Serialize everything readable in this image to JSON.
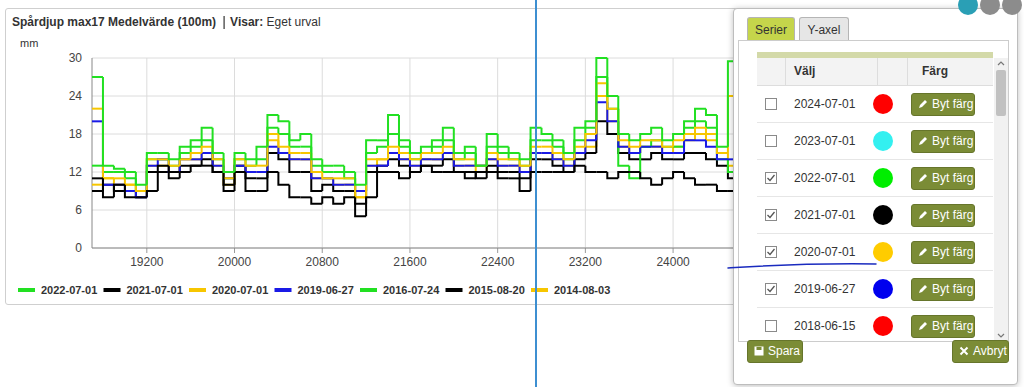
{
  "chart_data": {
    "type": "line",
    "title": "Spårdjup max17 Medelvärde (100m)",
    "subtitle": "Visar: Eget urval",
    "y_label": "mm",
    "line_style": "step",
    "x": [
      18700,
      18800,
      18900,
      19000,
      19100,
      19200,
      19300,
      19400,
      19500,
      19600,
      19700,
      19800,
      19900,
      20000,
      20100,
      20200,
      20300,
      20400,
      20500,
      20600,
      20700,
      20800,
      20900,
      21000,
      21100,
      21200,
      21300,
      21400,
      21500,
      21600,
      21700,
      21800,
      21900,
      22000,
      22100,
      22200,
      22300,
      22400,
      22500,
      22600,
      22700,
      22800,
      22900,
      23000,
      23100,
      23200,
      23300,
      23400,
      23500,
      23600,
      23700,
      23800,
      23900,
      24000,
      24100,
      24200,
      24300,
      24400,
      24500
    ],
    "xlim": [
      18700,
      27000
    ],
    "xticks": [
      19200,
      20000,
      20800,
      21600,
      22400,
      23200,
      24000
    ],
    "ylim": [
      0,
      30
    ],
    "yticks": [
      0,
      6,
      12,
      18,
      24,
      30
    ],
    "grid": true,
    "legend": "bottom",
    "series": [
      {
        "name": "2022-07-01",
        "color": "#22e022",
        "values": [
          27,
          13,
          12.5,
          12,
          10,
          15,
          15,
          14,
          16,
          17,
          19,
          15,
          12,
          15,
          14,
          16,
          21,
          20,
          17,
          18,
          14,
          13,
          13,
          12,
          10,
          17,
          17,
          21,
          17,
          15,
          16,
          17,
          19,
          15,
          16,
          13,
          18,
          16,
          15,
          14,
          19,
          18,
          17,
          15,
          19,
          20,
          30,
          24,
          18,
          17,
          18,
          19,
          17,
          18,
          20,
          22,
          21,
          16,
          29.5
        ]
      },
      {
        "name": "2021-07-01",
        "color": "#000000",
        "values": [
          11,
          8,
          10,
          8,
          8,
          9,
          13,
          12,
          12,
          13,
          13,
          12,
          10,
          12,
          9,
          9,
          12,
          10,
          8,
          8,
          7,
          8,
          7,
          8,
          5,
          8,
          12,
          12,
          11,
          12,
          13,
          12,
          12,
          12,
          11,
          12,
          12,
          11,
          11,
          9,
          12,
          12,
          12,
          12,
          13,
          12,
          12,
          11,
          12,
          12,
          11,
          10,
          11,
          12,
          11,
          10,
          10,
          9,
          9
        ]
      },
      {
        "name": "2020-07-01",
        "color": "#f7c600",
        "values": [
          22,
          11,
          11,
          10,
          9,
          14,
          14,
          13,
          14,
          15,
          16,
          14,
          11,
          14,
          13,
          13,
          18,
          16,
          15,
          15,
          12,
          11,
          11,
          11,
          8,
          14,
          14,
          16,
          15,
          14,
          15,
          15,
          16,
          14,
          14,
          13,
          15,
          14,
          14,
          13,
          16,
          16,
          15,
          14,
          16,
          18,
          26,
          22,
          17,
          16,
          17,
          17,
          16,
          17,
          18,
          19,
          18,
          15,
          24
        ]
      },
      {
        "name": "2019-06-27",
        "color": "#1a1ae6",
        "values": [
          20,
          10,
          10,
          9,
          8,
          13,
          14,
          12,
          14,
          14,
          15,
          13,
          11,
          13,
          12,
          12,
          16,
          15,
          14,
          14,
          11,
          11,
          10,
          10,
          9,
          13,
          13,
          15,
          14,
          13,
          14,
          14,
          15,
          13,
          13,
          13,
          14,
          13,
          13,
          12,
          15,
          15,
          14,
          13,
          15,
          17,
          23,
          20,
          16,
          15,
          16,
          16,
          15,
          15,
          17,
          17,
          16,
          14,
          14
        ]
      },
      {
        "name": "2016-07-24",
        "color": "#22e022",
        "values": [
          13,
          12,
          12,
          11,
          9,
          14,
          14,
          13,
          15,
          16,
          17,
          14,
          11,
          14,
          13,
          14,
          19,
          18,
          16,
          16,
          13,
          12,
          12,
          11,
          9,
          15,
          16,
          18,
          16,
          14,
          15,
          16,
          17,
          14,
          15,
          13,
          16,
          15,
          14,
          13,
          17,
          17,
          16,
          14,
          17,
          19,
          27,
          22,
          13,
          11,
          16,
          17,
          16,
          16,
          19,
          20,
          19,
          14,
          12
        ]
      },
      {
        "name": "2015-08-20",
        "color": "#000000",
        "values": [
          9,
          10,
          9,
          9,
          8,
          12,
          12,
          11,
          13,
          13,
          14,
          12,
          9,
          13,
          11,
          11,
          15,
          14,
          12,
          12,
          9,
          10,
          9,
          9,
          7,
          12,
          13,
          14,
          13,
          12,
          13,
          13,
          14,
          12,
          12,
          11,
          13,
          12,
          12,
          11,
          14,
          14,
          13,
          12,
          14,
          15,
          20,
          18,
          15,
          14,
          14,
          15,
          14,
          14,
          15,
          15,
          14,
          13,
          11
        ]
      },
      {
        "name": "2014-08-03",
        "color": "#f7c600",
        "values": [
          10,
          11,
          10,
          10,
          9,
          13,
          13,
          12,
          14,
          14,
          15,
          13,
          10,
          13,
          12,
          12,
          17,
          15,
          14,
          14,
          11,
          11,
          10,
          10,
          8,
          13,
          14,
          15,
          14,
          13,
          14,
          14,
          15,
          13,
          13,
          12,
          14,
          13,
          13,
          12,
          15,
          15,
          14,
          13,
          15,
          16,
          24,
          20,
          16,
          15,
          16,
          16,
          15,
          16,
          17,
          18,
          17,
          15,
          13
        ]
      }
    ]
  },
  "panel": {
    "tabs": [
      {
        "label": "Serier",
        "active": true
      },
      {
        "label": "Y-axel",
        "active": false
      }
    ],
    "columns": [
      "Välj",
      "Färg"
    ],
    "button_label": "Byt färg",
    "rows": [
      {
        "label": "2024-07-01",
        "checked": false,
        "color": "#ff0000"
      },
      {
        "label": "2023-07-01",
        "checked": false,
        "color": "#33f0f0"
      },
      {
        "label": "2022-07-01",
        "checked": true,
        "color": "#00ee00"
      },
      {
        "label": "2021-07-01",
        "checked": true,
        "color": "#000000"
      },
      {
        "label": "2020-07-01",
        "checked": true,
        "color": "#ffcc00"
      },
      {
        "label": "2019-06-27",
        "checked": true,
        "color": "#0000ee"
      },
      {
        "label": "2018-06-15",
        "checked": false,
        "color": "#ff0000"
      }
    ],
    "save": "Spara",
    "cancel": "Avbryt"
  }
}
